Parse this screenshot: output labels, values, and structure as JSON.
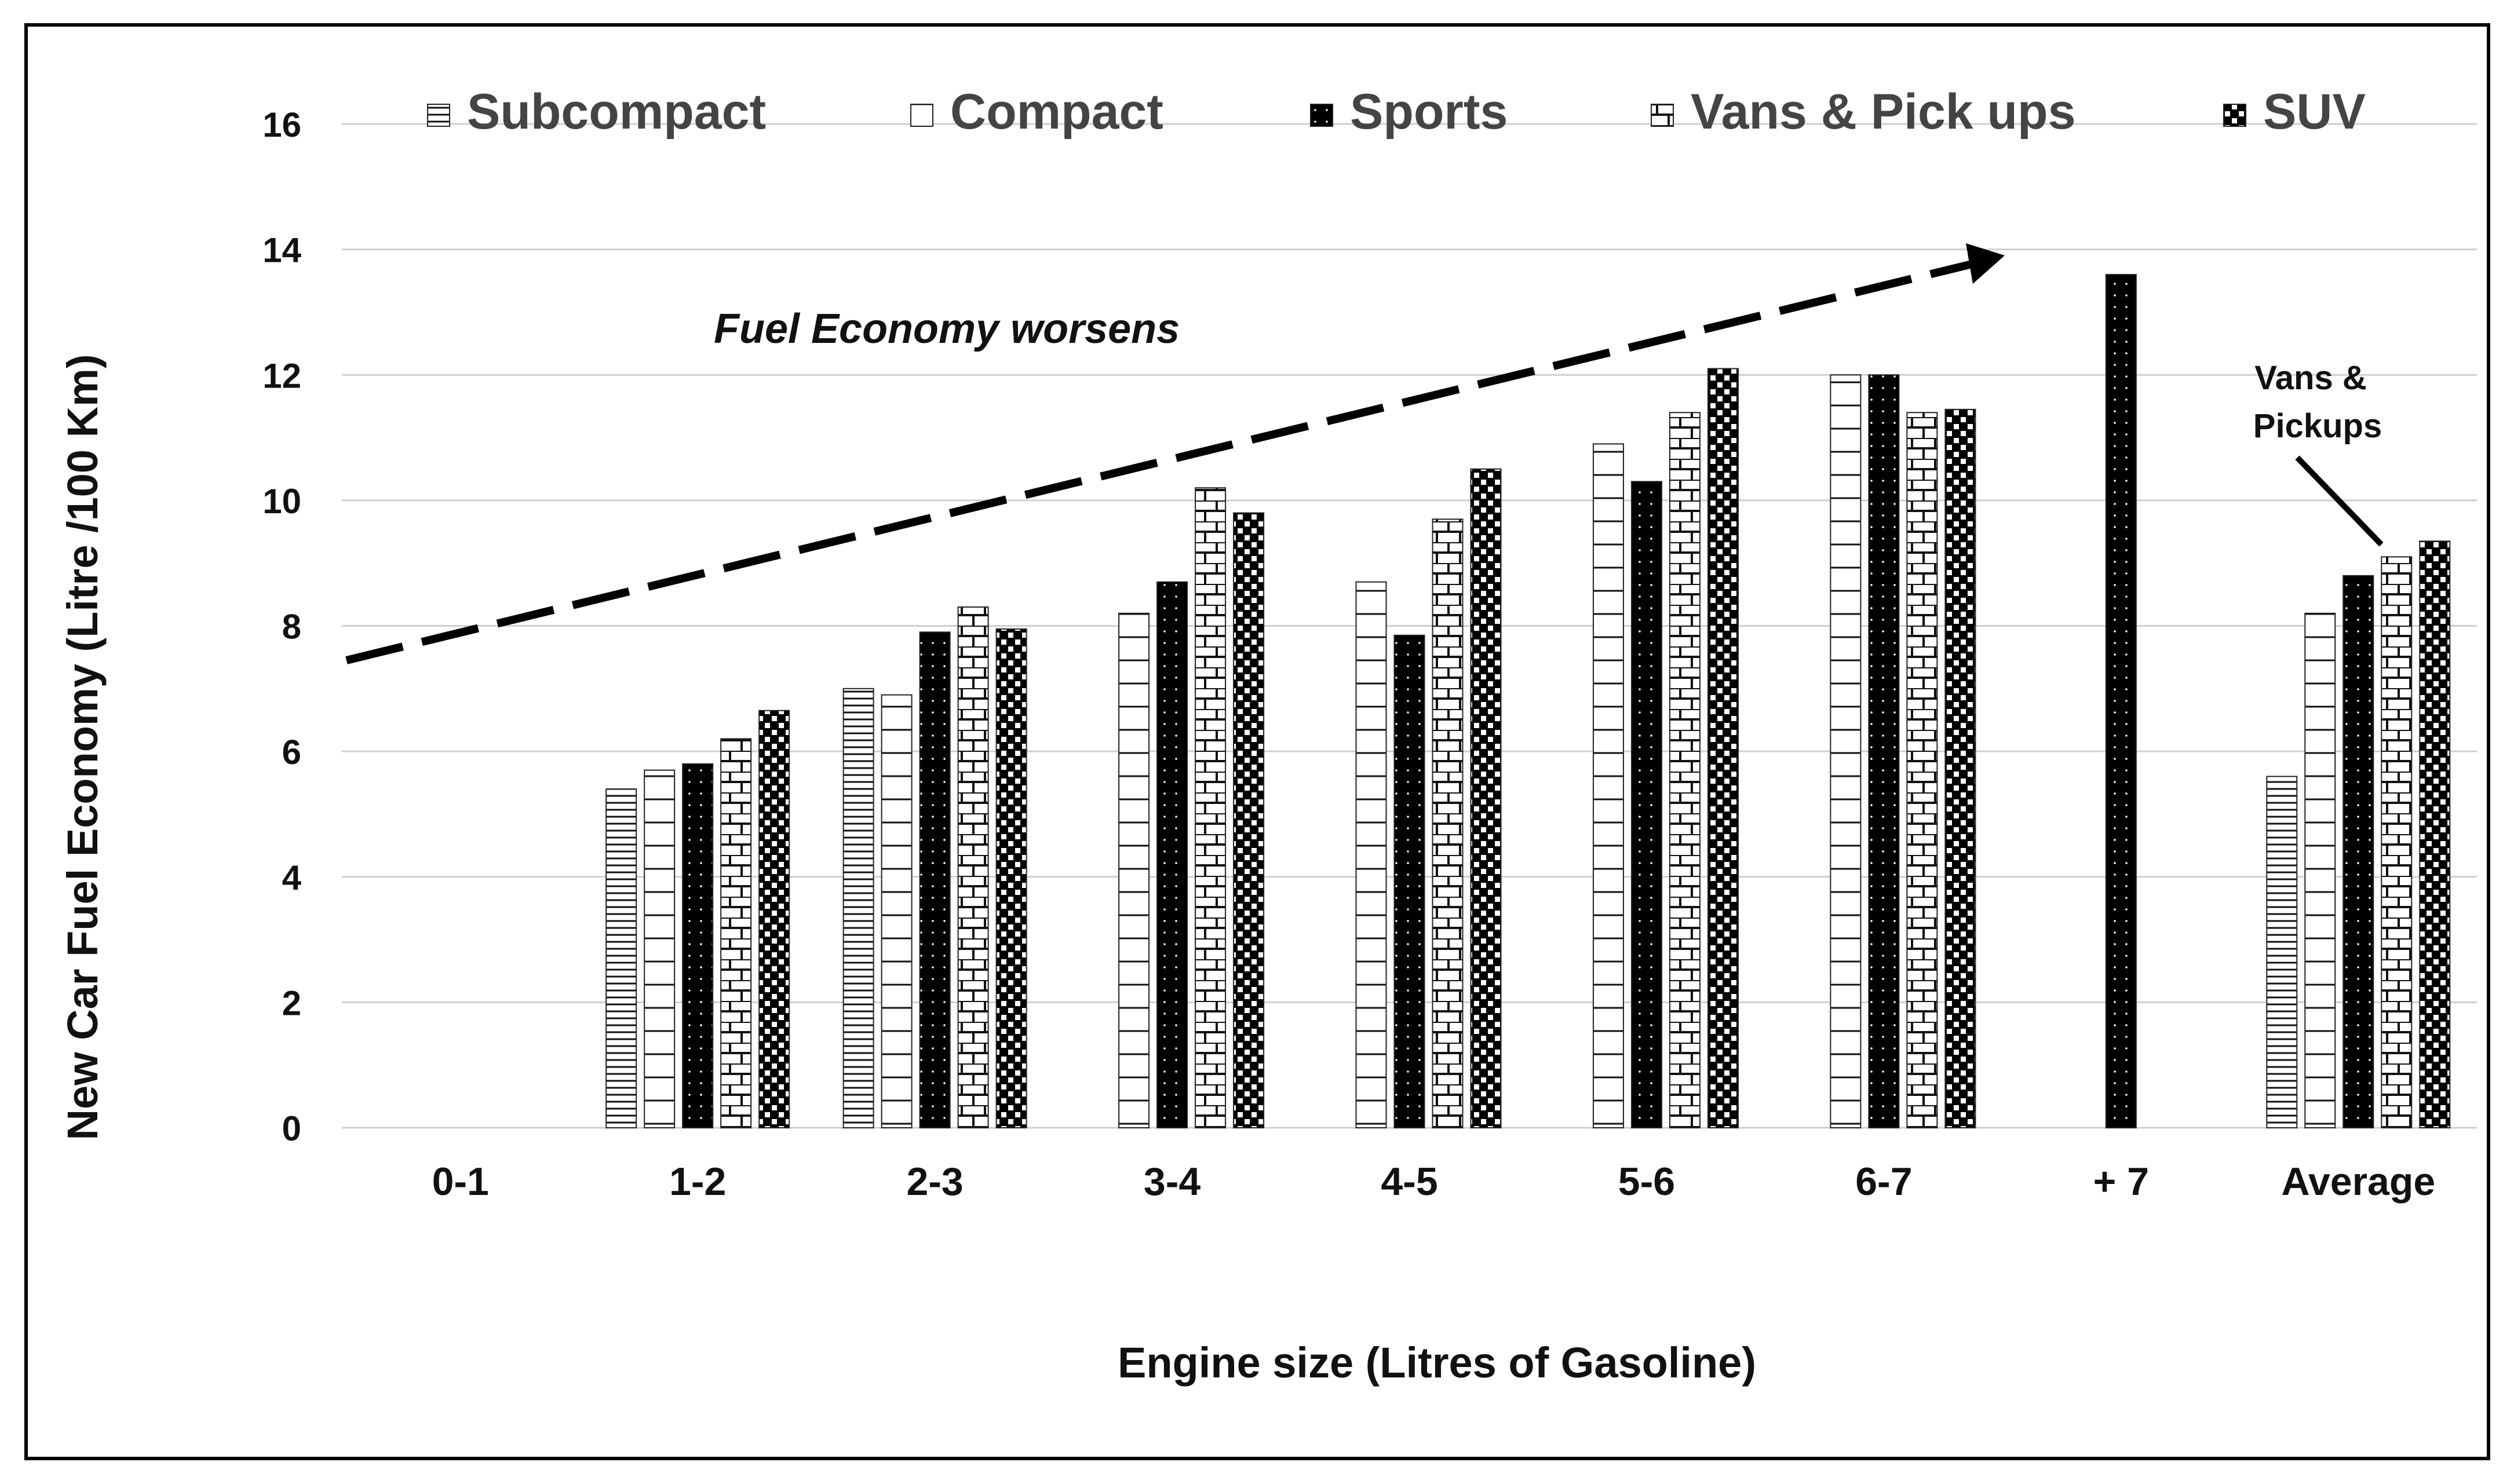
{
  "chart_data": {
    "type": "bar",
    "title": "",
    "xlabel": "Engine size (Litres of Gasoline)",
    "ylabel": "New Car Fuel Economy  (Litre /100 Km)",
    "ylim": [
      0,
      16
    ],
    "yticks": [
      0,
      2,
      4,
      6,
      8,
      10,
      12,
      14,
      16
    ],
    "ytick_labels": [
      "0",
      "2",
      "4",
      "6",
      "8",
      "10",
      "12",
      "14",
      "16"
    ],
    "grid": true,
    "legend_position": "top",
    "categories": [
      "0-1",
      "1-2",
      "2-3",
      "3-4",
      "4-5",
      "5-6",
      "6-7",
      "+ 7",
      "Average"
    ],
    "series": [
      {
        "name": "Subcompact",
        "pattern": "hlines",
        "values": [
          null,
          5.4,
          7.0,
          null,
          null,
          null,
          null,
          null,
          5.6
        ]
      },
      {
        "name": "Compact",
        "pattern": "cross",
        "values": [
          null,
          5.7,
          6.9,
          8.2,
          8.7,
          10.9,
          12.0,
          null,
          8.2
        ]
      },
      {
        "name": "Sports",
        "pattern": "dots",
        "values": [
          null,
          5.8,
          7.9,
          8.7,
          7.85,
          10.3,
          12.0,
          13.6,
          8.8
        ]
      },
      {
        "name": "Vans & Pick ups",
        "pattern": "brick",
        "values": [
          null,
          6.2,
          8.3,
          10.2,
          9.7,
          11.4,
          11.4,
          null,
          9.1
        ]
      },
      {
        "name": "SUV",
        "pattern": "check",
        "values": [
          null,
          6.65,
          7.95,
          9.8,
          10.5,
          12.1,
          11.45,
          null,
          9.35
        ]
      }
    ],
    "annotations": [
      {
        "text": "Fuel Economy worsens",
        "type": "trend-arrow"
      },
      {
        "text_lines": [
          "Vans &",
          "Pickups"
        ],
        "type": "callout-arrow",
        "category": "Average",
        "series": "Vans & Pick ups"
      }
    ]
  }
}
